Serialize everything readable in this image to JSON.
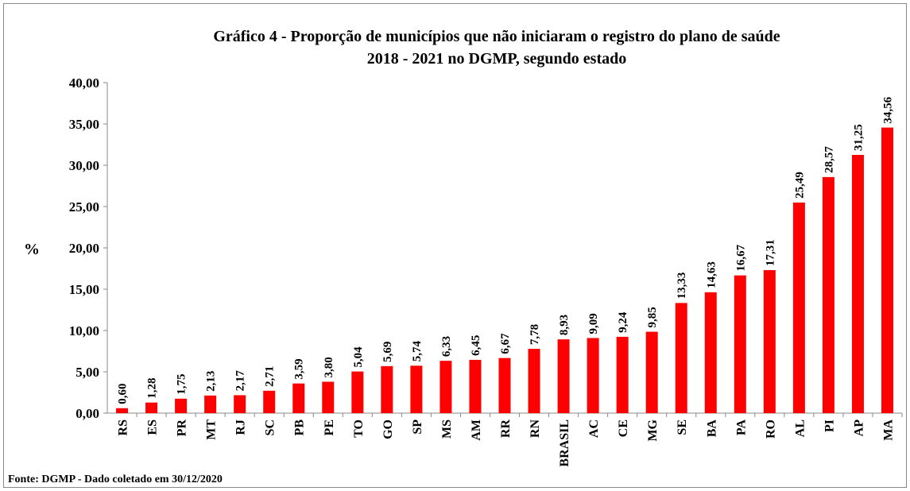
{
  "chart_data": {
    "type": "bar",
    "title": [
      "Gráfico 4 -  Proporção de municípios que não iniciaram o registro do plano de saúde",
      "2018 - 2021 no DGMP, segundo estado"
    ],
    "y_label": "%",
    "source": "Fonte: DGMP - Dado coletado em 30/12/2020",
    "categories": [
      "RS",
      "ES",
      "PR",
      "MT",
      "RJ",
      "SC",
      "PB",
      "PE",
      "TO",
      "GO",
      "SP",
      "MS",
      "AM",
      "RR",
      "RN",
      "BRASIL",
      "AC",
      "CE",
      "MG",
      "SE",
      "BA",
      "PA",
      "RO",
      "AL",
      "PI",
      "AP",
      "MA"
    ],
    "values": [
      0.6,
      1.28,
      1.75,
      2.13,
      2.17,
      2.71,
      3.59,
      3.8,
      5.04,
      5.69,
      5.74,
      6.33,
      6.45,
      6.67,
      7.78,
      8.93,
      9.09,
      9.24,
      9.85,
      13.33,
      14.63,
      16.67,
      17.31,
      25.49,
      28.57,
      31.25,
      34.56
    ],
    "value_labels": [
      "0,60",
      "1,28",
      "1,75",
      "2,13",
      "2,17",
      "2,71",
      "3,59",
      "3,80",
      "5,04",
      "5,69",
      "5,74",
      "6,33",
      "6,45",
      "6,67",
      "7,78",
      "8,93",
      "9,09",
      "9,24",
      "9,85",
      "13,33",
      "14,63",
      "16,67",
      "17,31",
      "25,49",
      "28,57",
      "31,25",
      "34,56"
    ],
    "color": "#ff0000",
    "ylim": [
      0,
      40
    ],
    "yticks": [
      {
        "value": 0,
        "label": "0,00"
      },
      {
        "value": 5,
        "label": "5,00"
      },
      {
        "value": 10,
        "label": "10,00"
      },
      {
        "value": 15,
        "label": "15,00"
      },
      {
        "value": 20,
        "label": "20,00"
      },
      {
        "value": 25,
        "label": "25,00"
      },
      {
        "value": 30,
        "label": "30,00"
      },
      {
        "value": 35,
        "label": "35,00"
      },
      {
        "value": 40,
        "label": "40,00"
      }
    ],
    "grid": false
  }
}
